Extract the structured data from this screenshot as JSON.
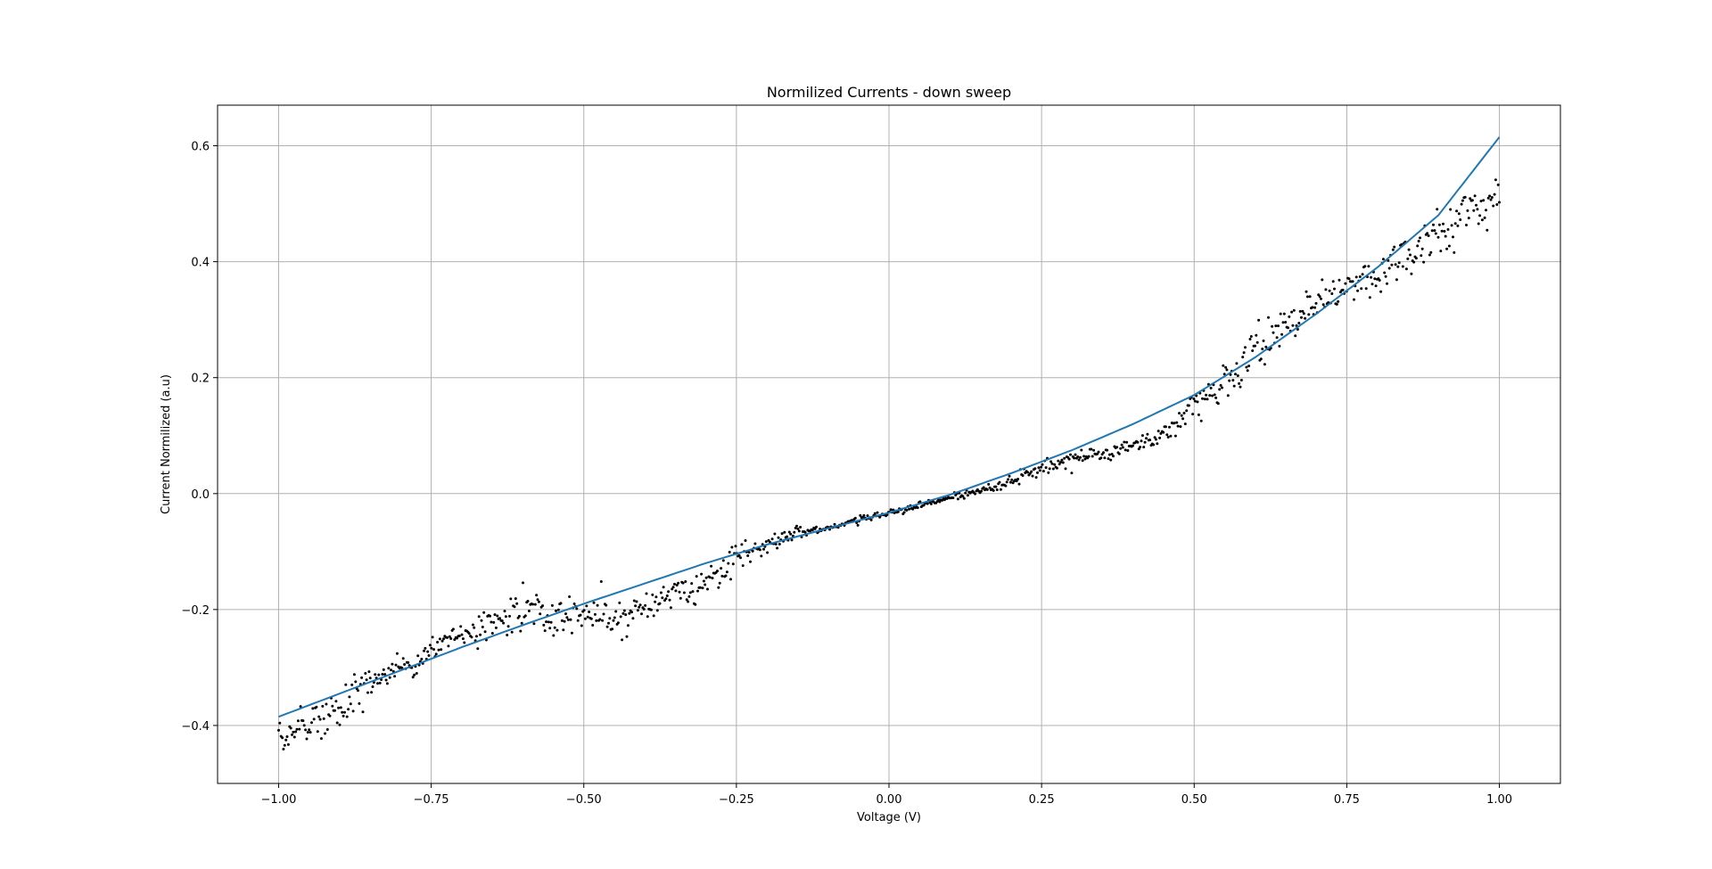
{
  "chart_data": {
    "type": "scatter",
    "title": "Normilized Currents - down sweep",
    "xlabel": "Voltage (V)",
    "ylabel": "Current Normilized (a.u)",
    "xlim": [
      -1.1,
      1.1
    ],
    "ylim": [
      -0.5,
      0.67
    ],
    "xticks": [
      -1.0,
      -0.75,
      -0.5,
      -0.25,
      0.0,
      0.25,
      0.5,
      0.75,
      1.0
    ],
    "xtick_labels": [
      "−1.00",
      "−0.75",
      "−0.50",
      "−0.25",
      "0.00",
      "0.25",
      "0.50",
      "0.75",
      "1.00"
    ],
    "yticks": [
      -0.4,
      -0.2,
      0.0,
      0.2,
      0.4,
      0.6
    ],
    "ytick_labels": [
      "−0.4",
      "−0.2",
      "0.0",
      "0.2",
      "0.4",
      "0.6"
    ],
    "grid": true,
    "legend": "none",
    "colors": {
      "points": "#000000",
      "fit": "#1f77b4",
      "grid": "#b0b0b0"
    },
    "series": [
      {
        "kind": "scatter",
        "x": [
          -1.0,
          -0.95,
          -0.9,
          -0.85,
          -0.8,
          -0.75,
          -0.7,
          -0.65,
          -0.6,
          -0.55,
          -0.5,
          -0.45,
          -0.4,
          -0.35,
          -0.3,
          -0.25,
          -0.2,
          -0.15,
          -0.1,
          -0.05,
          0.0,
          0.05,
          0.1,
          0.15,
          0.2,
          0.25,
          0.3,
          0.35,
          0.4,
          0.45,
          0.5,
          0.55,
          0.6,
          0.65,
          0.7,
          0.75,
          0.8,
          0.85,
          0.9,
          0.95,
          1.0
        ],
        "y_mean": [
          -0.415,
          -0.395,
          -0.37,
          -0.32,
          -0.3,
          -0.275,
          -0.24,
          -0.23,
          -0.2,
          -0.225,
          -0.205,
          -0.215,
          -0.195,
          -0.17,
          -0.16,
          -0.11,
          -0.09,
          -0.065,
          -0.06,
          -0.045,
          -0.033,
          -0.02,
          -0.008,
          0.005,
          0.02,
          0.045,
          0.06,
          0.07,
          0.085,
          0.1,
          0.15,
          0.19,
          0.25,
          0.28,
          0.33,
          0.35,
          0.38,
          0.41,
          0.45,
          0.49,
          0.51
        ],
        "y_spread": [
          0.02,
          0.02,
          0.03,
          0.02,
          0.015,
          0.015,
          0.015,
          0.02,
          0.035,
          0.03,
          0.02,
          0.03,
          0.025,
          0.02,
          0.02,
          0.015,
          0.012,
          0.006,
          0.004,
          0.004,
          0.004,
          0.004,
          0.004,
          0.005,
          0.007,
          0.008,
          0.01,
          0.01,
          0.012,
          0.015,
          0.02,
          0.025,
          0.03,
          0.03,
          0.02,
          0.02,
          0.025,
          0.025,
          0.03,
          0.03,
          0.035
        ],
        "n_points": 1000
      },
      {
        "kind": "line",
        "x": [
          -1.0,
          -0.9,
          -0.8,
          -0.7,
          -0.6,
          -0.5,
          -0.4,
          -0.3,
          -0.2,
          -0.1,
          0.0,
          0.1,
          0.2,
          0.3,
          0.4,
          0.5,
          0.6,
          0.7,
          0.8,
          0.9,
          1.0
        ],
        "y": [
          -0.385,
          -0.345,
          -0.305,
          -0.265,
          -0.227,
          -0.19,
          -0.155,
          -0.12,
          -0.088,
          -0.06,
          -0.033,
          -0.002,
          0.035,
          0.075,
          0.12,
          0.17,
          0.235,
          0.31,
          0.39,
          0.48,
          0.615
        ]
      }
    ]
  }
}
